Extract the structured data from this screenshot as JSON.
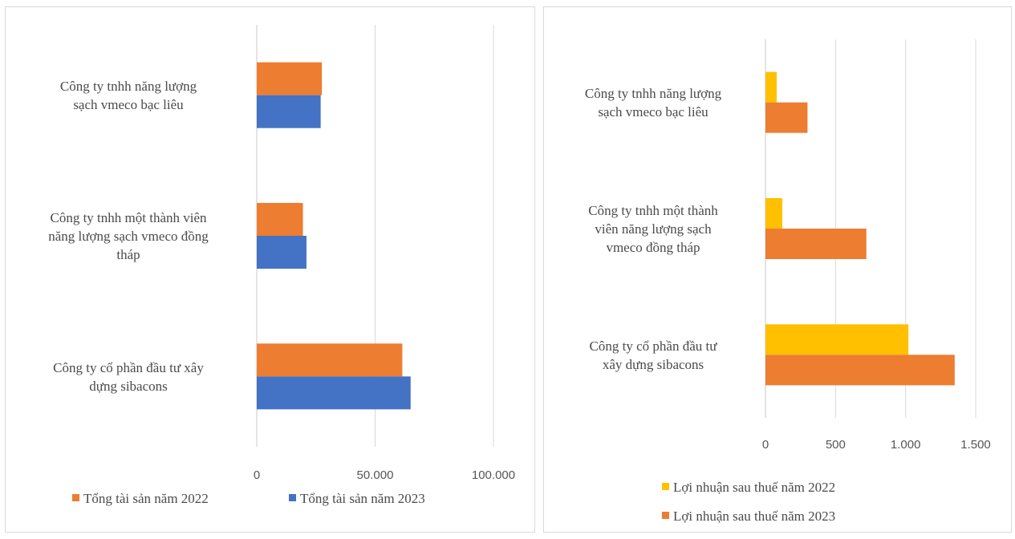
{
  "chart_data": [
    {
      "type": "bar",
      "orientation": "horizontal",
      "categories": [
        [
          "Công ty tnhh năng lượng",
          "sạch vmeco bạc liêu"
        ],
        [
          "Công ty tnhh một thành viên",
          "năng lượng sạch vmeco đồng",
          "tháp"
        ],
        [
          "Công ty cổ phần đầu tư xây",
          "dựng sibacons"
        ]
      ],
      "series": [
        {
          "name": "Tổng tài sản năm 2022",
          "color": "#ed7d31",
          "values": [
            27500,
            19500,
            61500
          ]
        },
        {
          "name": "Tổng tài sản năm 2023",
          "color": "#4472c4",
          "values": [
            27000,
            21000,
            65000
          ]
        }
      ],
      "xlim": [
        0,
        100000
      ],
      "xticks": [
        0,
        50000,
        100000
      ],
      "xtick_labels": [
        "0",
        "50.000",
        "100.000"
      ],
      "grid": true,
      "legend": "bottom"
    },
    {
      "type": "bar",
      "orientation": "horizontal",
      "categories": [
        [
          "Công ty tnhh năng lượng",
          "sạch vmeco bạc liêu"
        ],
        [
          "Công ty tnhh một thành",
          "viên năng lượng sạch",
          "vmeco đồng tháp"
        ],
        [
          "Công ty cổ phần đầu tư",
          "xây dựng sibacons"
        ]
      ],
      "series": [
        {
          "name": "Lợi nhuận sau thuế năm 2022",
          "color": "#ffc000",
          "values": [
            80,
            120,
            1020
          ]
        },
        {
          "name": "Lợi nhuận sau thuế năm 2023",
          "color": "#ed7d31",
          "values": [
            300,
            720,
            1350
          ]
        }
      ],
      "xlim": [
        0,
        1500
      ],
      "xticks": [
        0,
        500,
        1000,
        1500
      ],
      "xtick_labels": [
        "0",
        "500",
        "1.000",
        "1.500"
      ],
      "grid": true,
      "legend": "bottom"
    }
  ]
}
